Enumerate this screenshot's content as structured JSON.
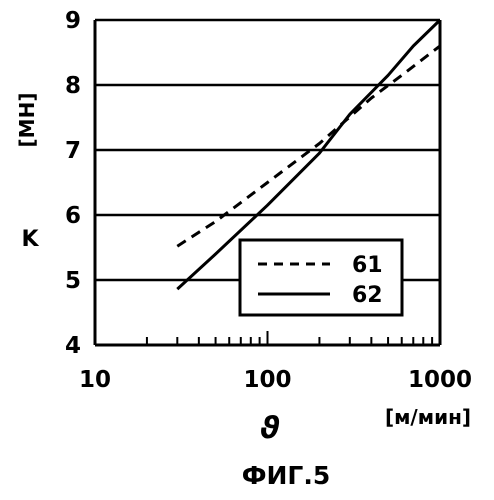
{
  "chart_data": {
    "type": "line",
    "x_scale": "log",
    "xlim": [
      10,
      1000
    ],
    "ylim": [
      4,
      9
    ],
    "x_ticks": [
      "10",
      "100",
      "1000"
    ],
    "y_ticks": [
      "4",
      "5",
      "6",
      "7",
      "8",
      "9"
    ],
    "xlabel": "ϑ",
    "xunit": "[м/мин]",
    "ylabel": "K",
    "yunit": "[MH]",
    "grid": "horizontal",
    "legend_position": "bottom-right",
    "series": [
      {
        "name": "61",
        "style": "dashed",
        "color": "#000000",
        "points": [
          [
            30,
            5.52
          ],
          [
            50,
            5.9
          ],
          [
            100,
            6.5
          ],
          [
            200,
            7.1
          ],
          [
            400,
            7.8
          ],
          [
            600,
            8.15
          ],
          [
            1000,
            8.6
          ]
        ]
      },
      {
        "name": "62",
        "style": "solid",
        "color": "#000000",
        "points": [
          [
            30,
            4.86
          ],
          [
            50,
            5.4
          ],
          [
            100,
            6.15
          ],
          [
            200,
            6.95
          ],
          [
            300,
            7.55
          ],
          [
            500,
            8.15
          ],
          [
            700,
            8.6
          ],
          [
            1000,
            9.0
          ]
        ]
      }
    ]
  },
  "caption": "ФИГ.5"
}
